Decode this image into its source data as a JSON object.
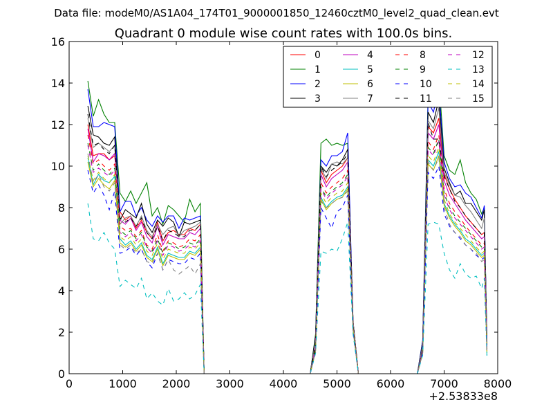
{
  "header": {
    "data_file_label": "Data file: modeM0/AS1A04_174T01_9000001850_12460cztM0_level2_quad_clean.evt"
  },
  "chart_data": {
    "type": "line",
    "title": "Quadrant 0 module wise count rates with 100.0s bins.",
    "xlabel": "",
    "ylabel": "",
    "x_offset_label": "+2.53833e8",
    "xlim": [
      0,
      8000
    ],
    "ylim": [
      0,
      16
    ],
    "x_ticks": [
      0,
      1000,
      2000,
      3000,
      4000,
      5000,
      6000,
      7000,
      8000
    ],
    "y_ticks": [
      0,
      2,
      4,
      6,
      8,
      10,
      12,
      14,
      16
    ],
    "x_tick_labels": [
      "0",
      "1000",
      "2000",
      "3000",
      "4000",
      "5000",
      "6000",
      "7000",
      "8000"
    ],
    "y_tick_labels": [
      "0",
      "2",
      "4",
      "6",
      "8",
      "10",
      "12",
      "14",
      "16"
    ],
    "grid": false,
    "legend_position": "top-right",
    "legend_columns": 4,
    "x": [
      350,
      450,
      550,
      650,
      750,
      850,
      950,
      1050,
      1150,
      1250,
      1350,
      1450,
      1550,
      1650,
      1750,
      1850,
      1950,
      2050,
      2150,
      2250,
      2350,
      2450,
      2520,
      2550,
      4500,
      4600,
      4700,
      4800,
      4900,
      5000,
      5100,
      5200,
      5300,
      5400,
      5450,
      6500,
      6600,
      6700,
      6800,
      6900,
      7000,
      7100,
      7200,
      7300,
      7400,
      7500,
      7600,
      7700,
      7750,
      7800
    ],
    "series": [
      {
        "name": "0",
        "color": "#ff0000",
        "dashed": false,
        "values": [
          12.0,
          10.5,
          10.6,
          10.6,
          10.3,
          10.5,
          7.8,
          7.4,
          7.6,
          7.0,
          7.4,
          6.8,
          6.5,
          7.3,
          6.4,
          6.8,
          6.9,
          6.7,
          6.7,
          7.0,
          6.9,
          7.2,
          0.0,
          0.0,
          0.0,
          1.3,
          9.8,
          9.2,
          9.6,
          9.8,
          10.0,
          10.4,
          2.5,
          0.0,
          0.0,
          0.0,
          1.2,
          11.9,
          11.6,
          12.3,
          9.6,
          8.9,
          8.4,
          8.0,
          7.6,
          7.3,
          7.0,
          6.7,
          6.8,
          1.2
        ]
      },
      {
        "name": "1",
        "color": "#008000",
        "dashed": false,
        "values": [
          14.1,
          12.4,
          13.2,
          12.5,
          12.1,
          12.1,
          8.7,
          8.3,
          8.8,
          8.2,
          8.7,
          9.2,
          7.6,
          8.0,
          7.2,
          8.1,
          7.9,
          7.6,
          7.3,
          8.4,
          7.8,
          8.2,
          0.0,
          0.0,
          0.0,
          1.9,
          11.1,
          11.3,
          11.0,
          11.1,
          11.0,
          11.1,
          2.5,
          0.0,
          0.0,
          0.0,
          1.6,
          13.5,
          13.3,
          14.3,
          10.5,
          9.8,
          9.6,
          10.3,
          9.2,
          8.7,
          8.4,
          7.7,
          8.0,
          1.5
        ]
      },
      {
        "name": "2",
        "color": "#0000ff",
        "dashed": false,
        "values": [
          13.7,
          11.9,
          11.9,
          12.1,
          12.0,
          11.9,
          7.8,
          8.3,
          8.3,
          7.6,
          8.0,
          7.4,
          7.1,
          7.6,
          7.3,
          7.6,
          7.6,
          7.0,
          7.5,
          7.4,
          7.5,
          7.6,
          0.0,
          0.0,
          0.0,
          1.8,
          10.3,
          10.0,
          10.5,
          10.5,
          10.7,
          11.6,
          2.5,
          0.0,
          0.0,
          0.0,
          1.6,
          13.1,
          12.6,
          13.7,
          10.2,
          9.4,
          9.0,
          9.1,
          8.7,
          8.5,
          8.0,
          7.5,
          8.1,
          1.4
        ]
      },
      {
        "name": "3",
        "color": "#000000",
        "dashed": false,
        "values": [
          12.9,
          11.5,
          11.4,
          11.1,
          11.0,
          11.4,
          7.4,
          7.9,
          7.7,
          7.5,
          8.2,
          7.2,
          6.8,
          7.4,
          7.1,
          7.5,
          7.3,
          6.6,
          7.3,
          7.2,
          7.3,
          7.4,
          0.0,
          0.0,
          0.0,
          1.8,
          10.0,
          9.7,
          10.1,
          10.0,
          10.3,
          10.8,
          2.5,
          0.0,
          0.0,
          0.0,
          1.5,
          12.6,
          12.1,
          13.2,
          9.9,
          9.2,
          8.6,
          8.8,
          8.2,
          8.2,
          7.8,
          7.4,
          7.9,
          1.4
        ]
      },
      {
        "name": "4",
        "color": "#bf00bf",
        "dashed": false,
        "values": [
          11.8,
          10.2,
          10.6,
          10.5,
          10.3,
          10.6,
          7.4,
          7.2,
          7.5,
          6.9,
          7.3,
          6.6,
          6.3,
          7.1,
          6.2,
          6.7,
          6.6,
          6.5,
          6.5,
          6.8,
          6.7,
          7.0,
          0.0,
          0.0,
          0.0,
          1.3,
          9.6,
          9.0,
          9.4,
          9.6,
          9.8,
          10.2,
          2.5,
          0.0,
          0.0,
          0.0,
          1.2,
          11.6,
          11.3,
          12.0,
          9.3,
          8.6,
          8.2,
          7.8,
          7.4,
          7.1,
          6.8,
          6.5,
          6.6,
          1.2
        ]
      },
      {
        "name": "5",
        "color": "#00bfbf",
        "dashed": false,
        "values": [
          10.4,
          9.1,
          9.6,
          9.3,
          9.2,
          9.5,
          6.5,
          6.2,
          6.4,
          6.0,
          6.3,
          5.7,
          5.5,
          6.1,
          5.3,
          5.8,
          5.7,
          5.6,
          5.6,
          5.9,
          5.8,
          6.1,
          0.0,
          0.0,
          0.0,
          1.1,
          8.5,
          8.0,
          8.3,
          8.5,
          8.6,
          9.0,
          2.1,
          0.0,
          0.0,
          0.0,
          1.0,
          10.3,
          10.0,
          10.7,
          8.2,
          7.6,
          7.2,
          6.9,
          6.5,
          6.3,
          6.0,
          5.7,
          5.8,
          1.0
        ]
      },
      {
        "name": "6",
        "color": "#bfbf00",
        "dashed": false,
        "values": [
          10.2,
          9.0,
          9.4,
          9.1,
          8.9,
          9.3,
          6.3,
          6.1,
          6.3,
          5.9,
          6.2,
          5.6,
          5.4,
          6.0,
          5.2,
          5.7,
          5.6,
          5.5,
          5.5,
          5.8,
          5.7,
          6.0,
          0.0,
          0.0,
          0.0,
          1.1,
          8.4,
          7.9,
          8.2,
          8.4,
          8.5,
          8.9,
          2.1,
          0.0,
          0.0,
          0.0,
          1.0,
          10.1,
          9.8,
          10.5,
          8.1,
          7.5,
          7.1,
          6.8,
          6.4,
          6.2,
          5.9,
          5.6,
          5.7,
          1.0
        ]
      },
      {
        "name": "7",
        "color": "#808080",
        "dashed": false,
        "values": [
          12.3,
          10.9,
          11.1,
          10.9,
          10.7,
          11.0,
          7.2,
          7.5,
          7.6,
          7.1,
          7.6,
          6.9,
          6.6,
          7.2,
          6.7,
          7.0,
          7.1,
          6.6,
          6.9,
          7.0,
          7.1,
          7.3,
          0.0,
          0.0,
          0.0,
          1.6,
          9.9,
          9.4,
          10.1,
          10.2,
          10.1,
          10.4,
          2.5,
          0.0,
          0.0,
          0.0,
          1.4,
          12.2,
          11.8,
          12.8,
          9.7,
          9.1,
          8.6,
          8.5,
          8.1,
          7.8,
          7.4,
          7.0,
          7.5,
          1.3
        ]
      },
      {
        "name": "8",
        "color": "#ff0000",
        "dashed": true,
        "values": [
          11.5,
          10.1,
          10.3,
          10.0,
          9.8,
          10.1,
          7.1,
          6.9,
          7.0,
          6.6,
          6.9,
          6.2,
          6.0,
          6.7,
          5.9,
          6.4,
          6.3,
          6.1,
          6.2,
          6.5,
          6.4,
          6.7,
          0.0,
          0.0,
          0.0,
          1.2,
          9.2,
          8.7,
          9.0,
          9.2,
          9.4,
          9.8,
          2.3,
          0.0,
          0.0,
          0.0,
          1.1,
          11.2,
          10.8,
          11.5,
          8.9,
          8.2,
          7.8,
          7.5,
          7.1,
          6.8,
          6.5,
          6.2,
          6.3,
          1.1
        ]
      },
      {
        "name": "9",
        "color": "#008000",
        "dashed": true,
        "values": [
          11.1,
          9.8,
          10.1,
          9.8,
          9.6,
          9.9,
          6.9,
          6.7,
          6.9,
          6.5,
          6.8,
          6.1,
          5.9,
          6.5,
          5.8,
          6.3,
          6.2,
          6.0,
          6.1,
          6.3,
          6.2,
          6.5,
          0.0,
          0.0,
          0.0,
          1.2,
          9.0,
          8.5,
          8.8,
          9.0,
          9.2,
          9.6,
          2.3,
          0.0,
          0.0,
          0.0,
          1.1,
          10.9,
          10.6,
          11.3,
          8.7,
          8.0,
          7.6,
          7.3,
          7.0,
          6.7,
          6.4,
          6.1,
          6.2,
          1.1
        ]
      },
      {
        "name": "10",
        "color": "#0000ff",
        "dashed": true,
        "values": [
          9.8,
          8.7,
          9.1,
          8.6,
          7.9,
          8.8,
          5.8,
          5.9,
          6.1,
          5.7,
          6.0,
          5.4,
          5.1,
          5.8,
          5.0,
          5.5,
          5.4,
          5.3,
          5.3,
          5.6,
          5.5,
          5.8,
          0.0,
          0.0,
          0.0,
          1.0,
          8.0,
          7.5,
          7.0,
          7.8,
          8.0,
          8.6,
          2.0,
          0.0,
          0.0,
          0.0,
          1.0,
          9.7,
          9.4,
          10.0,
          7.7,
          7.1,
          6.8,
          6.5,
          6.2,
          6.0,
          5.7,
          5.5,
          5.6,
          0.9
        ]
      },
      {
        "name": "11",
        "color": "#000000",
        "dashed": true,
        "values": [
          12.5,
          11.0,
          11.1,
          10.8,
          10.6,
          11.0,
          7.5,
          7.3,
          7.5,
          7.1,
          7.5,
          6.8,
          6.5,
          7.1,
          6.4,
          6.9,
          6.8,
          6.6,
          6.6,
          6.9,
          6.9,
          7.2,
          0.0,
          0.0,
          0.0,
          1.4,
          10.0,
          9.5,
          9.8,
          10.0,
          10.2,
          10.6,
          2.4,
          0.0,
          0.0,
          0.0,
          1.2,
          12.1,
          11.3,
          11.3,
          9.5,
          8.9,
          8.3,
          8.0,
          7.6,
          7.3,
          7.0,
          6.7,
          6.8,
          1.2
        ]
      },
      {
        "name": "12",
        "color": "#bf00bf",
        "dashed": true,
        "values": [
          11.0,
          9.7,
          9.9,
          9.7,
          9.5,
          9.8,
          6.8,
          6.6,
          6.8,
          6.4,
          6.7,
          6.1,
          5.8,
          6.4,
          5.7,
          6.2,
          6.1,
          5.9,
          6.0,
          6.2,
          6.1,
          6.4,
          0.0,
          0.0,
          0.0,
          1.2,
          8.9,
          8.4,
          8.7,
          8.9,
          9.1,
          9.5,
          2.2,
          0.0,
          0.0,
          0.0,
          1.1,
          10.8,
          10.5,
          11.2,
          8.6,
          7.9,
          7.5,
          7.2,
          6.9,
          6.6,
          6.3,
          6.0,
          6.1,
          1.1
        ]
      },
      {
        "name": "13",
        "color": "#00bfbf",
        "dashed": true,
        "values": [
          8.2,
          6.5,
          6.4,
          6.8,
          6.3,
          6.0,
          4.2,
          4.5,
          4.3,
          4.1,
          4.6,
          3.6,
          3.9,
          3.5,
          3.3,
          4.1,
          3.5,
          3.6,
          3.9,
          3.6,
          3.8,
          4.3,
          0.0,
          0.0,
          0.0,
          1.0,
          5.9,
          5.8,
          6.0,
          5.9,
          6.5,
          7.3,
          1.9,
          0.0,
          0.0,
          0.0,
          0.9,
          7.2,
          7.3,
          7.2,
          5.8,
          5.0,
          4.6,
          5.3,
          4.8,
          4.6,
          4.7,
          4.1,
          4.6,
          0.8
        ]
      },
      {
        "name": "14",
        "color": "#bfbf00",
        "dashed": true,
        "values": [
          10.5,
          9.3,
          9.7,
          9.4,
          9.2,
          9.6,
          6.6,
          6.4,
          6.6,
          6.2,
          6.5,
          5.9,
          5.7,
          6.3,
          5.5,
          6.0,
          5.9,
          5.8,
          5.8,
          6.1,
          6.0,
          6.3,
          0.0,
          0.0,
          0.0,
          1.1,
          8.7,
          8.2,
          8.5,
          8.7,
          8.8,
          9.2,
          2.2,
          0.0,
          0.0,
          0.0,
          1.0,
          10.5,
          10.2,
          10.9,
          8.4,
          7.7,
          7.3,
          7.0,
          6.7,
          6.4,
          6.1,
          5.8,
          5.9,
          1.0
        ]
      },
      {
        "name": "15",
        "color": "#808080",
        "dashed": true,
        "values": [
          10.6,
          9.2,
          9.6,
          9.0,
          8.8,
          9.2,
          6.2,
          6.0,
          6.2,
          5.8,
          6.0,
          5.4,
          5.3,
          5.8,
          5.0,
          5.5,
          5.0,
          4.8,
          5.0,
          5.2,
          4.8,
          5.3,
          0.0,
          0.0,
          0.0,
          1.1,
          8.3,
          8.0,
          8.2,
          8.4,
          8.5,
          8.8,
          2.1,
          0.0,
          0.0,
          0.0,
          1.0,
          10.2,
          9.8,
          10.4,
          8.0,
          7.2,
          6.8,
          6.6,
          6.2,
          6.0,
          5.8,
          5.4,
          5.5,
          1.0
        ]
      }
    ]
  }
}
